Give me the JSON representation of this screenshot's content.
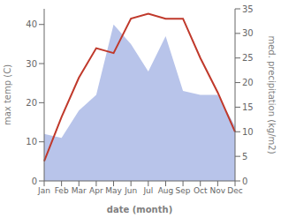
{
  "chart_data": {
    "type": "line",
    "categories": [
      "Jan",
      "Feb",
      "Mar",
      "Apr",
      "May",
      "Jun",
      "Jul",
      "Aug",
      "Sep",
      "Oct",
      "Nov",
      "Dec"
    ],
    "xlabel": "date (month)",
    "ylabel": "max temp (C)",
    "y2label": "med. precipitation (kg/m2)",
    "ylim": [
      0,
      44
    ],
    "yticks": [
      0,
      10,
      20,
      30,
      40
    ],
    "y2lim": [
      0,
      35
    ],
    "y2ticks": [
      0,
      5,
      10,
      15,
      20,
      25,
      30,
      35
    ],
    "series": [
      {
        "type": "area",
        "color": "#b8c4ea",
        "values": [
          12,
          11,
          18,
          22,
          40,
          35,
          28,
          37,
          23,
          22,
          22,
          14
        ]
      },
      {
        "type": "line",
        "color": "#c0392b",
        "axis": "y2",
        "values": [
          4,
          13,
          21,
          27,
          26,
          33,
          34,
          33,
          33,
          25,
          18,
          10
        ]
      }
    ]
  }
}
